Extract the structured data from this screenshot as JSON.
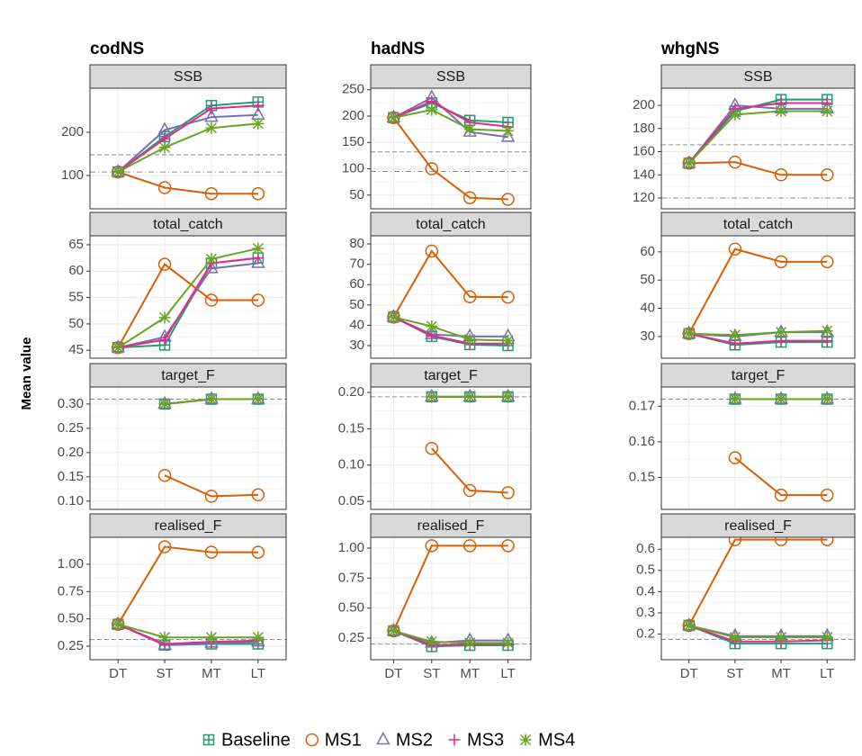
{
  "chart_data": {
    "type": "line",
    "ylabel": "Mean value",
    "categories": [
      "DT",
      "ST",
      "MT",
      "LT"
    ],
    "series": [
      {
        "name": "Baseline",
        "color": "#1b9e77",
        "marker": "square-plus"
      },
      {
        "name": "MS1",
        "color": "#d95f02",
        "marker": "circle"
      },
      {
        "name": "MS2",
        "color": "#7570b3",
        "marker": "triangle"
      },
      {
        "name": "MS3",
        "color": "#e7298a",
        "marker": "plus"
      },
      {
        "name": "MS4",
        "color": "#66a61e",
        "marker": "asterisk"
      }
    ],
    "stocks": [
      {
        "title": "codNS",
        "panels": [
          {
            "title": "SSB",
            "ylim": [
              23,
              302
            ],
            "yticks": [
              100,
              200
            ],
            "hlines": [
              {
                "value": 148,
                "style": "dashed"
              },
              {
                "value": 108,
                "style": "dotdash"
              }
            ],
            "series": [
              {
                "values": [
                  108,
                  190,
                  262,
                  270
                ]
              },
              {
                "values": [
                  108,
                  72,
                  58,
                  58
                ]
              },
              {
                "values": [
                  108,
                  205,
                  235,
                  240
                ]
              },
              {
                "values": [
                  108,
                  185,
                  255,
                  262
                ]
              },
              {
                "values": [
                  108,
                  165,
                  210,
                  220
                ]
              }
            ]
          },
          {
            "title": "total_catch",
            "ylim": [
              43.5,
              66.7
            ],
            "yticks": [
              45,
              50,
              55,
              60,
              65
            ],
            "hlines": [],
            "series": [
              {
                "values": [
                  45.5,
                  46,
                  61.5,
                  62.5
                ]
              },
              {
                "values": [
                  45.5,
                  61.3,
                  54.5,
                  54.5
                ]
              },
              {
                "values": [
                  45.5,
                  47.5,
                  60.5,
                  61.5
                ]
              },
              {
                "values": [
                  45.5,
                  47,
                  61.5,
                  62.5
                ]
              },
              {
                "values": [
                  45.5,
                  51.2,
                  62.3,
                  64.3
                ]
              }
            ]
          },
          {
            "title": "target_F",
            "ylim": [
              0.083,
              0.335
            ],
            "yticks": [
              {
                "value": 0.1,
                "label": "0.10"
              },
              0.15,
              {
                "value": 0.2,
                "label": "0.20"
              },
              0.25,
              {
                "value": 0.3,
                "label": "0.30"
              }
            ],
            "hlines": [
              {
                "value": 0.31,
                "style": "dashed"
              }
            ],
            "series": [
              {
                "values": [
                  null,
                  0.3,
                  0.31,
                  0.31
                ]
              },
              {
                "values": [
                  null,
                  0.153,
                  0.11,
                  0.113
                ]
              },
              {
                "values": [
                  null,
                  0.3,
                  0.31,
                  0.31
                ]
              },
              {
                "values": [
                  null,
                  0.3,
                  0.31,
                  0.31
                ]
              },
              {
                "values": [
                  null,
                  0.3,
                  0.31,
                  0.31
                ]
              }
            ]
          },
          {
            "title": "realised_F",
            "ylim": [
              0.126,
              1.247
            ],
            "yticks": [
              0.25,
              {
                "value": 0.5,
                "label": "0.50"
              },
              0.75,
              {
                "value": 1,
                "label": "1.00"
              }
            ],
            "hlines": [
              {
                "value": 0.31,
                "style": "dashed"
              }
            ],
            "series": [
              {
                "values": [
                  0.45,
                  0.26,
                  0.27,
                  0.27
                ]
              },
              {
                "values": [
                  0.45,
                  1.16,
                  1.11,
                  1.11
                ]
              },
              {
                "values": [
                  0.45,
                  0.26,
                  0.28,
                  0.29
                ]
              },
              {
                "values": [
                  0.45,
                  0.27,
                  0.29,
                  0.3
                ]
              },
              {
                "values": [
                  0.45,
                  0.33,
                  0.33,
                  0.33
                ]
              }
            ]
          }
        ]
      },
      {
        "title": "hadNS",
        "panels": [
          {
            "title": "SSB",
            "ylim": [
              24,
              253
            ],
            "yticks": [
              50,
              100,
              150,
              200,
              250
            ],
            "hlines": [
              {
                "value": 132,
                "style": "dashed"
              },
              {
                "value": 95,
                "style": "dotdash"
              }
            ],
            "series": [
              {
                "values": [
                  197,
                  225,
                  192,
                  188
                ]
              },
              {
                "values": [
                  197,
                  100,
                  45,
                  42
                ]
              },
              {
                "values": [
                  197,
                  235,
                  170,
                  160
                ]
              },
              {
                "values": [
                  197,
                  228,
                  188,
                  180
                ]
              },
              {
                "values": [
                  197,
                  212,
                  175,
                  172
                ]
              }
            ]
          },
          {
            "title": "total_catch",
            "ylim": [
              23.8,
              84
            ],
            "yticks": [
              30,
              40,
              50,
              60,
              70,
              80
            ],
            "hlines": [],
            "series": [
              {
                "values": [
                  44,
                  34.5,
                  30.5,
                  30
                ]
              },
              {
                "values": [
                  44,
                  76.5,
                  54,
                  53.8
                ]
              },
              {
                "values": [
                  44,
                  35.5,
                  34.5,
                  34.5
                ]
              },
              {
                "values": [
                  44,
                  35,
                  31,
                  31
                ]
              },
              {
                "values": [
                  44,
                  39.5,
                  33,
                  32.5
                ]
              }
            ]
          },
          {
            "title": "target_F",
            "ylim": [
              0.039,
              0.2075
            ],
            "yticks": [
              0.05,
              {
                "value": 0.1,
                "label": "0.10"
              },
              0.15,
              {
                "value": 0.2,
                "label": "0.20"
              }
            ],
            "hlines": [
              {
                "value": 0.194,
                "style": "dashed"
              }
            ],
            "series": [
              {
                "values": [
                  null,
                  0.194,
                  0.194,
                  0.194
                ]
              },
              {
                "values": [
                  null,
                  0.123,
                  0.065,
                  0.062
                ]
              },
              {
                "values": [
                  null,
                  0.194,
                  0.194,
                  0.194
                ]
              },
              {
                "values": [
                  null,
                  0.194,
                  0.194,
                  0.194
                ]
              },
              {
                "values": [
                  null,
                  0.194,
                  0.194,
                  0.194
                ]
              }
            ]
          },
          {
            "title": "realised_F",
            "ylim": [
              0.07,
              1.09
            ],
            "yticks": [
              0.25,
              {
                "value": 0.5,
                "label": "0.50"
              },
              0.75,
              {
                "value": 1,
                "label": "1.00"
              }
            ],
            "hlines": [
              {
                "value": 0.2,
                "style": "dashed"
              }
            ],
            "series": [
              {
                "values": [
                  0.31,
                  0.18,
                  0.19,
                  0.19
                ]
              },
              {
                "values": [
                  0.31,
                  1.02,
                  1.02,
                  1.02
                ]
              },
              {
                "values": [
                  0.31,
                  0.21,
                  0.23,
                  0.23
                ]
              },
              {
                "values": [
                  0.31,
                  0.19,
                  0.2,
                  0.2
                ]
              },
              {
                "values": [
                  0.31,
                  0.22,
                  0.21,
                  0.21
                ]
              }
            ]
          }
        ]
      },
      {
        "title": "whgNS",
        "panels": [
          {
            "title": "SSB",
            "ylim": [
              110.7,
              214.8
            ],
            "yticks": [
              120,
              140,
              160,
              180,
              200
            ],
            "hlines": [
              {
                "value": 166,
                "style": "dashed"
              },
              {
                "value": 120,
                "style": "dotdash"
              }
            ],
            "series": [
              {
                "values": [
                  150,
                  195,
                  205,
                  205
                ]
              },
              {
                "values": [
                  150,
                  151,
                  140,
                  140
                ]
              },
              {
                "values": [
                  150,
                  200,
                  197,
                  197
                ]
              },
              {
                "values": [
                  150,
                  197,
                  202,
                  202
                ]
              },
              {
                "values": [
                  150,
                  192,
                  195,
                  195
                ]
              }
            ]
          },
          {
            "title": "total_catch",
            "ylim": [
              22.3,
              65.7
            ],
            "yticks": [
              30,
              40,
              50,
              60
            ],
            "hlines": [],
            "series": [
              {
                "values": [
                  31,
                  27,
                  28,
                  28
                ]
              },
              {
                "values": [
                  31,
                  61,
                  56.5,
                  56.5
                ]
              },
              {
                "values": [
                  31,
                  30,
                  31.5,
                  31.5
                ]
              },
              {
                "values": [
                  31,
                  27.5,
                  28.5,
                  28.5
                ]
              },
              {
                "values": [
                  31,
                  30.5,
                  31.5,
                  32
                ]
              }
            ]
          },
          {
            "title": "target_F",
            "ylim": [
              0.141,
              0.1754
            ],
            "yticks": [
              0.15,
              0.16,
              0.17
            ],
            "hlines": [
              {
                "value": 0.172,
                "style": "dashed"
              }
            ],
            "series": [
              {
                "values": [
                  null,
                  0.172,
                  0.172,
                  0.172
                ]
              },
              {
                "values": [
                  null,
                  0.1555,
                  0.145,
                  0.145
                ]
              },
              {
                "values": [
                  null,
                  0.172,
                  0.172,
                  0.172
                ]
              },
              {
                "values": [
                  null,
                  0.172,
                  0.172,
                  0.172
                ]
              },
              {
                "values": [
                  null,
                  0.172,
                  0.172,
                  0.172
                ]
              }
            ]
          },
          {
            "title": "realised_F",
            "ylim": [
              0.079,
              0.656
            ],
            "yticks": [
              0.2,
              0.3,
              0.4,
              0.5,
              0.6
            ],
            "hlines": [
              {
                "value": 0.175,
                "style": "dashed"
              }
            ],
            "series": [
              {
                "values": [
                  0.24,
                  0.155,
                  0.155,
                  0.155
                ]
              },
              {
                "values": [
                  0.24,
                  0.645,
                  0.645,
                  0.645
                ]
              },
              {
                "values": [
                  0.24,
                  0.19,
                  0.19,
                  0.19
                ]
              },
              {
                "values": [
                  0.24,
                  0.165,
                  0.165,
                  0.17
                ]
              },
              {
                "values": [
                  0.24,
                  0.185,
                  0.185,
                  0.185
                ]
              }
            ]
          }
        ]
      }
    ]
  }
}
